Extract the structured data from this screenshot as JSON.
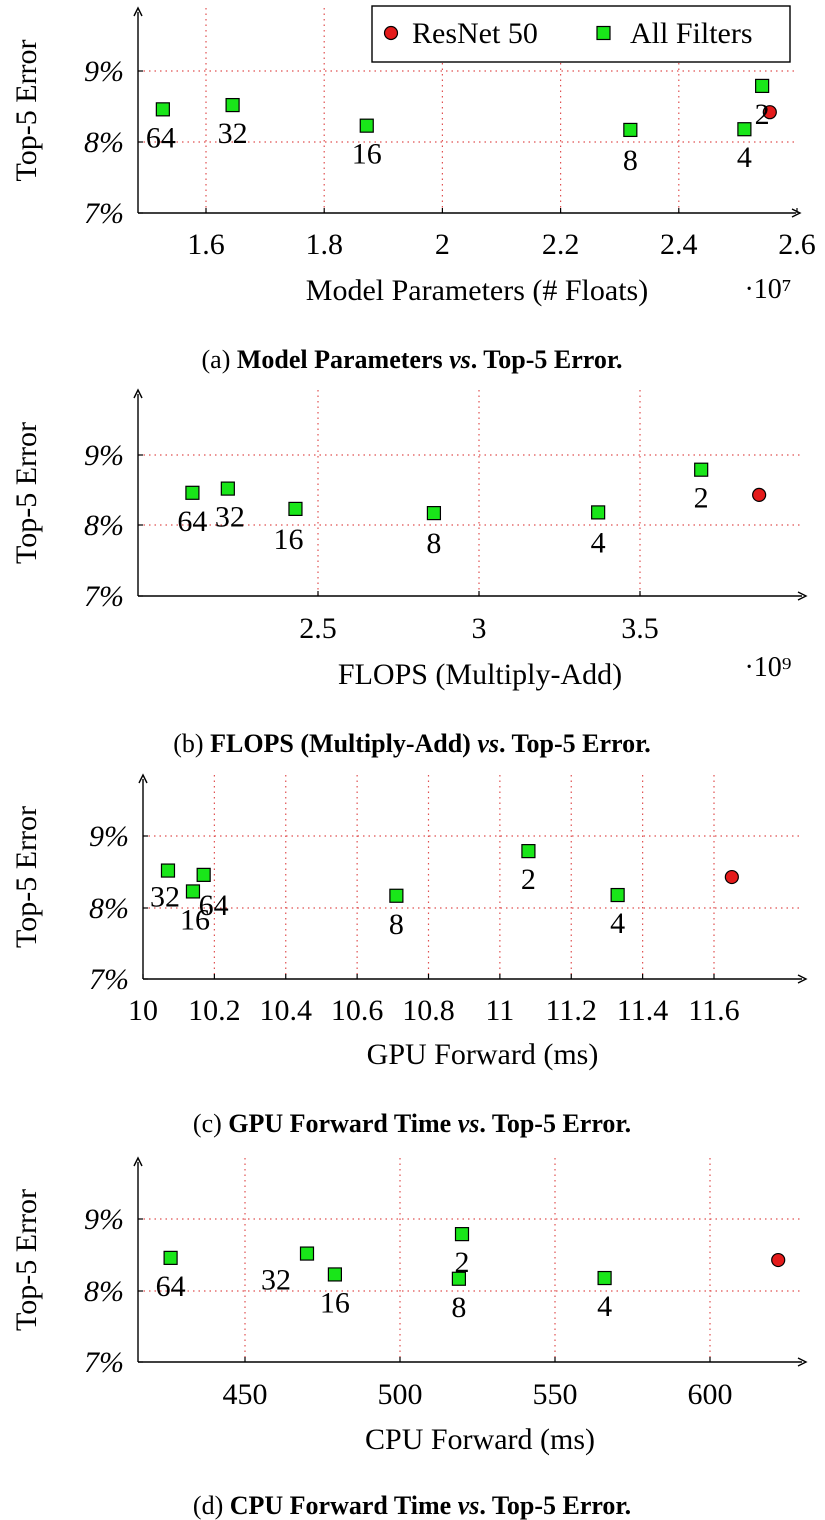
{
  "legend": {
    "resnet_label": "ResNet 50",
    "filters_label": "All Filters"
  },
  "colors": {
    "resnet": "#e41b1b",
    "filters": "#19e619",
    "grid": "#e05050"
  },
  "chart_data": [
    {
      "type": "scatter",
      "ylabel": "Top-5 Error",
      "xlabel": "Model Parameters (# Floats)",
      "x_multiplier": "·10⁷",
      "caption_prefix": "(a)",
      "caption_bold_1": "Model Parameters",
      "caption_vs": "vs",
      "caption_bold_2": ". Top-5 Error.",
      "x_ticks": [
        1.6,
        1.8,
        2.0,
        2.2,
        2.4,
        2.6
      ],
      "x_tick_labels": [
        "1.6",
        "1.8",
        "2",
        "2.2",
        "2.4",
        "2.6"
      ],
      "xlim": [
        1.42,
        2.65
      ],
      "y_ticks": [
        7,
        8,
        9
      ],
      "y_tick_labels": [
        "7%",
        "8%",
        "9%"
      ],
      "ylim": [
        7,
        9.95
      ],
      "legend_position": "top-right",
      "series": [
        {
          "name": "ResNet 50",
          "marker": "circle",
          "points": [
            {
              "x": 2.554,
              "y": 8.42
            }
          ]
        },
        {
          "name": "All Filters",
          "marker": "square",
          "points": [
            {
              "x": 1.527,
              "y": 8.46,
              "label": "64"
            },
            {
              "x": 1.645,
              "y": 8.52,
              "label": "32"
            },
            {
              "x": 1.872,
              "y": 8.23,
              "label": "16"
            },
            {
              "x": 2.318,
              "y": 8.17,
              "label": "8"
            },
            {
              "x": 2.511,
              "y": 8.18,
              "label": "4"
            },
            {
              "x": 2.541,
              "y": 8.79,
              "label": "2"
            }
          ]
        }
      ]
    },
    {
      "type": "scatter",
      "ylabel": "Top-5 Error",
      "xlabel": "FLOPS (Multiply-Add)",
      "x_multiplier": "·10⁹",
      "caption_prefix": "(b)",
      "caption_bold_1": "FLOPS (Multiply-Add)",
      "caption_vs": "vs",
      "caption_bold_2": ". Top-5 Error.",
      "x_ticks": [
        2.5,
        3.0,
        3.5
      ],
      "x_tick_labels": [
        "2.5",
        "3",
        "3.5"
      ],
      "xlim": [
        2.01,
        3.95
      ],
      "y_ticks": [
        7,
        8,
        9
      ],
      "y_tick_labels": [
        "7%",
        "8%",
        "9%"
      ],
      "ylim": [
        7,
        9.95
      ],
      "series": [
        {
          "name": "ResNet 50",
          "marker": "circle",
          "points": [
            {
              "x": 3.87,
              "y": 8.43
            }
          ]
        },
        {
          "name": "All Filters",
          "marker": "square",
          "points": [
            {
              "x": 2.11,
              "y": 8.46,
              "label": "64"
            },
            {
              "x": 2.22,
              "y": 8.52,
              "label": "32"
            },
            {
              "x": 2.43,
              "y": 8.23,
              "label": "16"
            },
            {
              "x": 2.86,
              "y": 8.17,
              "label": "8"
            },
            {
              "x": 3.37,
              "y": 8.18,
              "label": "4"
            },
            {
              "x": 3.69,
              "y": 8.79,
              "label": "2"
            }
          ]
        }
      ]
    },
    {
      "type": "scatter",
      "ylabel": "Top-5 Error",
      "xlabel": "GPU Forward (ms)",
      "x_multiplier": "",
      "caption_prefix": "(c)",
      "caption_bold_1": "GPU Forward Time",
      "caption_vs": "vs",
      "caption_bold_2": ". Top-5 Error.",
      "x_ticks": [
        10.0,
        10.2,
        10.4,
        10.6,
        10.8,
        11.0,
        11.2,
        11.4,
        11.6
      ],
      "x_tick_labels": [
        "10",
        "10.2",
        "10.4",
        "10.6",
        "10.8",
        "11",
        "11.2",
        "11.4",
        "11.6"
      ],
      "xlim": [
        9.99,
        11.74
      ],
      "y_ticks": [
        7,
        8,
        9
      ],
      "y_tick_labels": [
        "7%",
        "8%",
        "9%"
      ],
      "ylim": [
        7,
        9.95
      ],
      "series": [
        {
          "name": "ResNet 50",
          "marker": "circle",
          "points": [
            {
              "x": 11.65,
              "y": 8.43
            }
          ]
        },
        {
          "name": "All Filters",
          "marker": "square",
          "points": [
            {
              "x": 10.17,
              "y": 8.46,
              "label": "64"
            },
            {
              "x": 10.07,
              "y": 8.52,
              "label": "32"
            },
            {
              "x": 10.14,
              "y": 8.23,
              "label": "16"
            },
            {
              "x": 10.71,
              "y": 8.17,
              "label": "8"
            },
            {
              "x": 11.33,
              "y": 8.18,
              "label": "4"
            },
            {
              "x": 11.08,
              "y": 8.79,
              "label": "2"
            }
          ]
        }
      ]
    },
    {
      "type": "scatter",
      "ylabel": "Top-5 Error",
      "xlabel": "CPU Forward (ms)",
      "x_multiplier": "",
      "caption_prefix": "(d)",
      "caption_bold_1": "CPU Forward Time",
      "caption_vs": "vs",
      "caption_bold_2": ". Top-5 Error.",
      "x_ticks": [
        450,
        500,
        550,
        600
      ],
      "x_tick_labels": [
        "450",
        "500",
        "550",
        "600"
      ],
      "xlim": [
        416,
        631
      ],
      "y_ticks": [
        7,
        8,
        9
      ],
      "y_tick_labels": [
        "7%",
        "8%",
        "9%"
      ],
      "ylim": [
        7,
        9.95
      ],
      "series": [
        {
          "name": "ResNet 50",
          "marker": "circle",
          "points": [
            {
              "x": 622,
              "y": 8.43
            }
          ]
        },
        {
          "name": "All Filters",
          "marker": "square",
          "points": [
            {
              "x": 426,
              "y": 8.46,
              "label": "64"
            },
            {
              "x": 470,
              "y": 8.52,
              "label": "32"
            },
            {
              "x": 479,
              "y": 8.23,
              "label": "16"
            },
            {
              "x": 519,
              "y": 8.17,
              "label": "8"
            },
            {
              "x": 566,
              "y": 8.18,
              "label": "4"
            },
            {
              "x": 520,
              "y": 8.79,
              "label": "2"
            }
          ]
        }
      ]
    }
  ]
}
